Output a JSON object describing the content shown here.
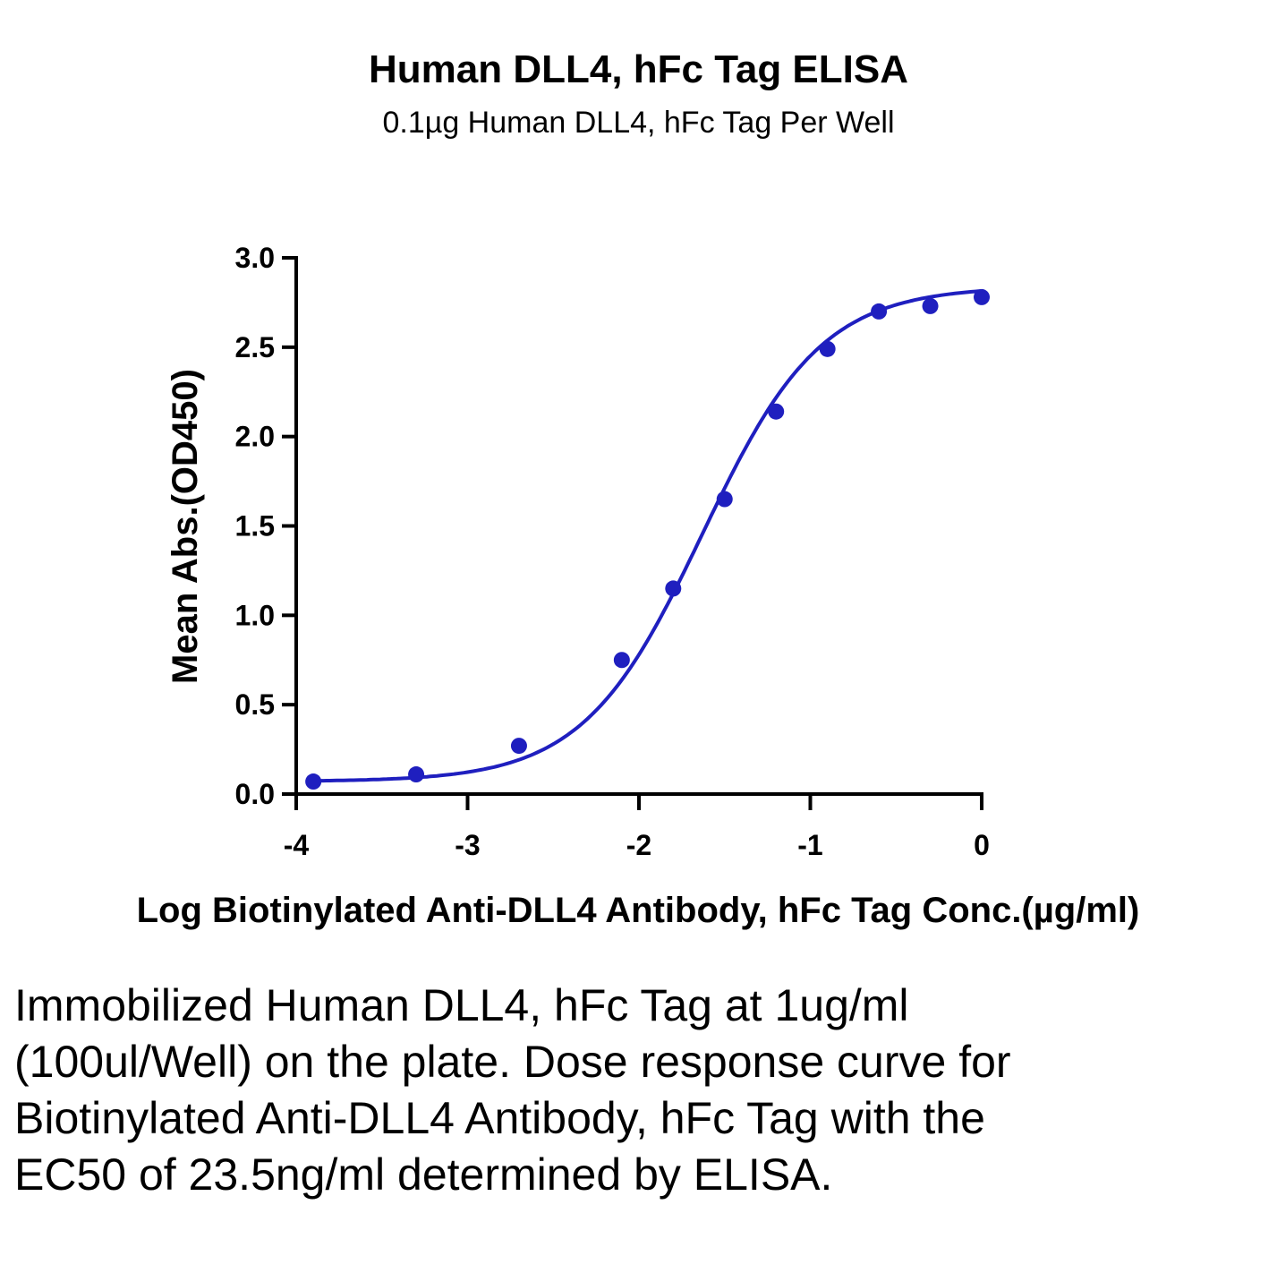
{
  "chart_data": {
    "type": "scatter",
    "title": "Human DLL4, hFc Tag ELISA",
    "subtitle": "0.1µg Human DLL4, hFc Tag Per Well",
    "xlabel": "Log Biotinylated Anti-DLL4 Antibody, hFc Tag Conc.(µg/ml)",
    "ylabel": "Mean Abs.(OD450)",
    "xlim": [
      -4,
      0
    ],
    "ylim": [
      0,
      3.0
    ],
    "xticks": [
      -4,
      -3,
      -2,
      -1,
      0
    ],
    "xtick_labels": [
      "-4",
      "-3",
      "-2",
      "-1",
      "0"
    ],
    "yticks": [
      0,
      0.5,
      1.0,
      1.5,
      2.0,
      2.5,
      3.0
    ],
    "ytick_labels": [
      "0.0",
      "0.5",
      "1.0",
      "1.5",
      "2.0",
      "2.5",
      "3.0"
    ],
    "series": [
      {
        "x": [
          -3.9,
          -3.3,
          -2.7,
          -2.1,
          -1.8,
          -1.5,
          -1.2,
          -0.9,
          -0.6,
          -0.3,
          0.0
        ],
        "y": [
          0.07,
          0.11,
          0.27,
          0.75,
          1.15,
          1.65,
          2.14,
          2.49,
          2.7,
          2.73,
          2.78
        ],
        "color": "#1f1fbf",
        "fit": "4PL"
      }
    ],
    "grid": false,
    "legend": "none"
  },
  "caption": "Immobilized Human DLL4, hFc Tag at 1ug/ml (100ul/Well) on the plate. Dose response curve for Biotinylated Anti-DLL4 Antibody, hFc Tag with the EC50 of 23.5ng/ml determined by ELISA."
}
